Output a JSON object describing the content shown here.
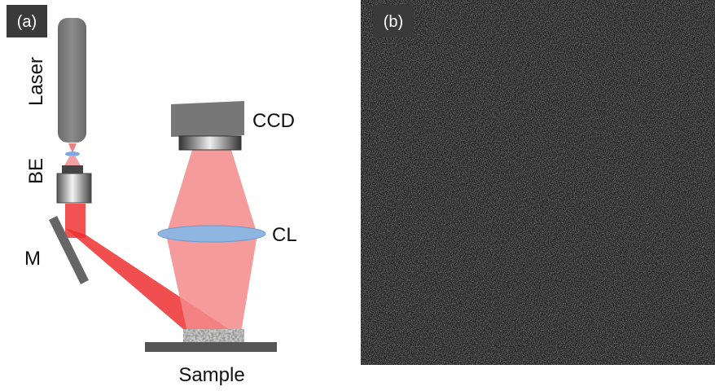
{
  "panels": [
    {
      "label": "(a)"
    },
    {
      "label": "(b)"
    }
  ],
  "components": {
    "laser": "Laser",
    "beam_expander": "BE",
    "mirror": "M",
    "camera": "CCD",
    "lens": "CL",
    "sample": "Sample"
  }
}
